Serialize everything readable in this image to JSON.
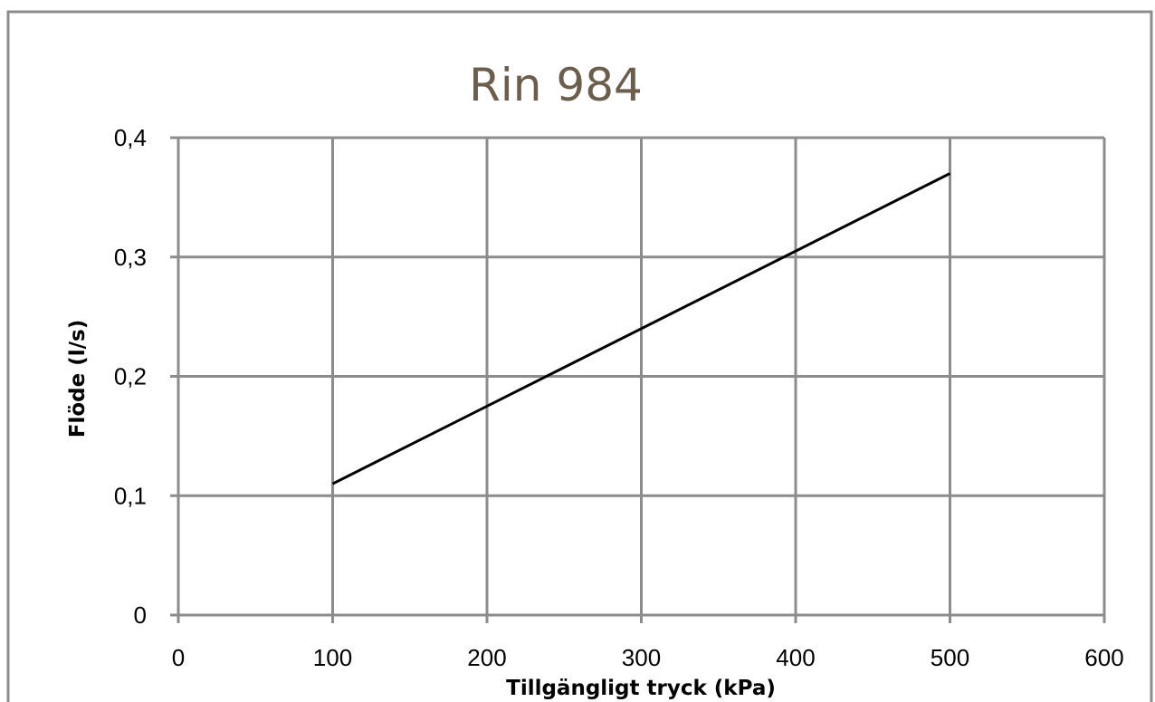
{
  "chart_data": {
    "type": "line",
    "title": "Rin 984",
    "xlabel": "Tillgängligt tryck (kPa)",
    "ylabel": "Flöde (l/s)",
    "xlim": [
      0,
      600
    ],
    "ylim": [
      0,
      0.4
    ],
    "x_ticks": [
      0,
      100,
      200,
      300,
      400,
      500,
      600
    ],
    "x_tick_labels": [
      "0",
      "100",
      "200",
      "300",
      "400",
      "500",
      "600"
    ],
    "y_ticks": [
      0,
      0.1,
      0.2,
      0.3,
      0.4
    ],
    "y_tick_labels": [
      "0",
      "0,1",
      "0,2",
      "0,3",
      "0,4"
    ],
    "grid": true,
    "legend": "none",
    "series": [
      {
        "color": "#000000",
        "x": [
          100,
          500
        ],
        "y": [
          0.11,
          0.37
        ]
      }
    ],
    "colors": {
      "title": "#6b5e4d",
      "grid": "#8c8c8c",
      "frame": "#8c8c8c",
      "line": "#000000"
    }
  }
}
